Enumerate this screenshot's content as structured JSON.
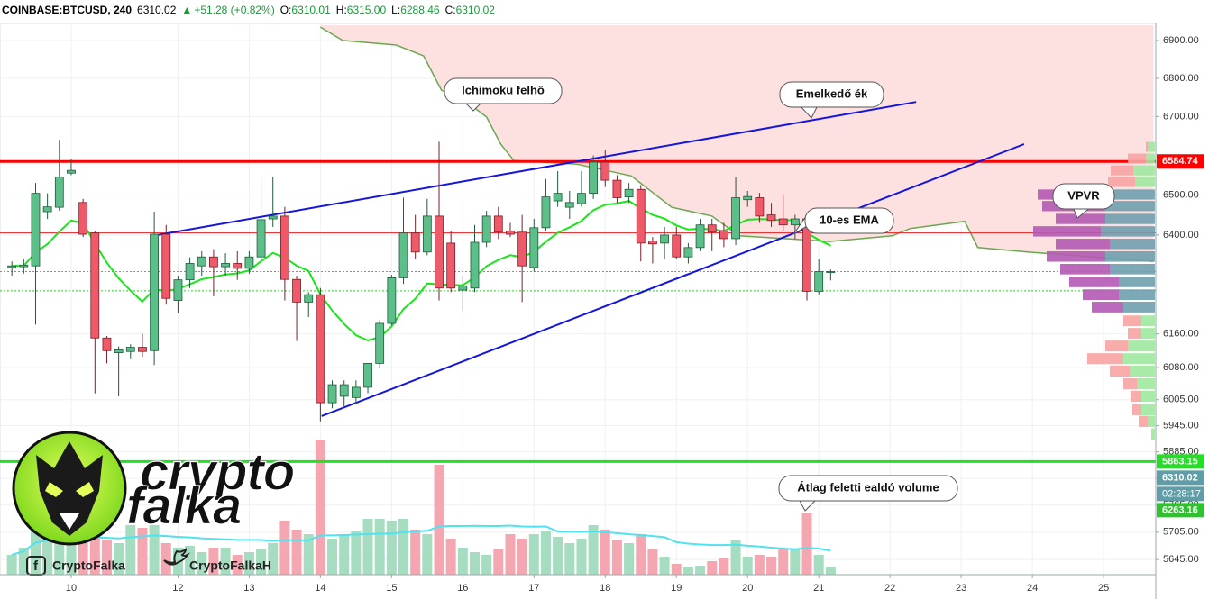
{
  "header": {
    "symbol": "COINBASE:BTCUSD, 240",
    "last": "6310.02",
    "change": "+51.28 (+0.82%)",
    "ohlc": [
      {
        "label": "O:",
        "value": "6310.01"
      },
      {
        "label": "H:",
        "value": "6315.00"
      },
      {
        "label": "L:",
        "value": "6288.46"
      },
      {
        "label": "C:",
        "value": "6310.02"
      }
    ]
  },
  "logo": {
    "line1": "crypto",
    "line2": "falka"
  },
  "footer": [
    "CryptoFalka",
    "CryptoFalkaH"
  ],
  "chart_data": {
    "type": "candlestick",
    "log_scale": true,
    "grid": true,
    "xlim": [
      -1,
      96.4
    ],
    "ylim": [
      5612,
      6941
    ],
    "xticks": [
      {
        "value": 5,
        "label": "10"
      },
      {
        "value": 14,
        "label": "12"
      },
      {
        "value": 20,
        "label": "13"
      },
      {
        "value": 26,
        "label": "14"
      },
      {
        "value": 32,
        "label": "15"
      },
      {
        "value": 38,
        "label": "16"
      },
      {
        "value": 44,
        "label": "17"
      },
      {
        "value": 50,
        "label": "18"
      },
      {
        "value": 56,
        "label": "19"
      },
      {
        "value": 62,
        "label": "20"
      },
      {
        "value": 68,
        "label": "21"
      },
      {
        "value": 74,
        "label": "22"
      },
      {
        "value": 80,
        "label": "23"
      },
      {
        "value": 86,
        "label": "24"
      },
      {
        "value": 92,
        "label": "25"
      }
    ],
    "yticks": [
      {
        "value": 6900,
        "label": "6900.00"
      },
      {
        "value": 6800,
        "label": "6800.00"
      },
      {
        "value": 6700,
        "label": "6700.00"
      },
      {
        "value": 6500,
        "label": "6500.00"
      },
      {
        "value": 6400,
        "label": "6400.00"
      },
      {
        "value": 6160,
        "label": "6160.00"
      },
      {
        "value": 6080,
        "label": "6080.00"
      },
      {
        "value": 6005,
        "label": "6005.00"
      },
      {
        "value": 5945,
        "label": "5945.00"
      },
      {
        "value": 5885,
        "label": "5885.00"
      },
      {
        "value": 5825,
        "label": "5825.00"
      },
      {
        "value": 5765,
        "label": "5765.00"
      },
      {
        "value": 5705,
        "label": "5705.00"
      },
      {
        "value": 5645,
        "label": "5645.00"
      }
    ],
    "x": [
      0,
      1,
      2,
      3,
      4,
      5,
      6,
      7,
      8,
      9,
      10,
      11,
      12,
      13,
      14,
      15,
      16,
      17,
      18,
      19,
      20,
      21,
      22,
      23,
      24,
      25,
      26,
      27,
      28,
      29,
      30,
      31,
      32,
      33,
      34,
      35,
      36,
      37,
      38,
      39,
      40,
      41,
      42,
      43,
      44,
      45,
      46,
      47,
      48,
      49,
      50,
      51,
      52,
      53,
      54,
      55,
      56,
      57,
      58,
      59,
      60,
      61,
      62,
      63,
      64,
      65,
      66,
      67,
      68,
      69
    ],
    "open": [
      6320,
      6322,
      6324,
      6458,
      6469,
      6555,
      6481,
      6405,
      6150,
      6115,
      6118,
      6128,
      6120,
      6402,
      6240,
      6290,
      6324,
      6346,
      6322,
      6330,
      6318,
      6346,
      6440,
      6447,
      6291,
      6236,
      6254,
      5998,
      6013,
      6010,
      6034,
      6090,
      6185,
      6295,
      6405,
      6358,
      6447,
      6380,
      6265,
      6270,
      6382,
      6447,
      6410,
      6407,
      6320,
      6418,
      6485,
      6469,
      6478,
      6504,
      6583,
      6537,
      6495,
      6514,
      6385,
      6380,
      6400,
      6346,
      6369,
      6425,
      6410,
      6391,
      6488,
      6493,
      6450,
      6440,
      6425,
      6440,
      6262,
      6310.01
    ],
    "high": [
      6335,
      6340,
      6530,
      6504,
      6640,
      6590,
      6490,
      6410,
      6155,
      6130,
      6135,
      6160,
      6458,
      6425,
      6300,
      6345,
      6360,
      6365,
      6355,
      6360,
      6360,
      6545,
      6545,
      6470,
      6300,
      6260,
      6270,
      6050,
      6050,
      6050,
      6090,
      6193,
      6302,
      6493,
      6450,
      6490,
      6635,
      6410,
      6300,
      6425,
      6460,
      6470,
      6430,
      6450,
      6440,
      6540,
      6560,
      6510,
      6560,
      6600,
      6615,
      6550,
      6530,
      6525,
      6395,
      6420,
      6420,
      6380,
      6440,
      6440,
      6430,
      6545,
      6510,
      6505,
      6480,
      6500,
      6450,
      6455,
      6340,
      6315
    ],
    "low": [
      6300,
      6305,
      6182,
      6440,
      6460,
      6550,
      6395,
      6020,
      6090,
      6013,
      6100,
      6105,
      6086,
      6230,
      6210,
      6270,
      6300,
      6250,
      6300,
      6290,
      6305,
      6336,
      6420,
      6240,
      6143,
      6200,
      5955,
      5985,
      5990,
      5995,
      6020,
      6080,
      6180,
      6280,
      6340,
      6350,
      6240,
      6260,
      6215,
      6260,
      6370,
      6390,
      6395,
      6236,
      6310,
      6410,
      6470,
      6440,
      6470,
      6490,
      6520,
      6480,
      6480,
      6335,
      6330,
      6340,
      6340,
      6330,
      6360,
      6360,
      6370,
      6375,
      6470,
      6430,
      6420,
      6410,
      6390,
      6240,
      6255,
      6288.46
    ],
    "close": [
      6324,
      6326,
      6504,
      6470,
      6545,
      6562,
      6402,
      6150,
      6120,
      6122,
      6128,
      6118,
      6402,
      6245,
      6290,
      6330,
      6346,
      6322,
      6330,
      6318,
      6346,
      6438,
      6447,
      6291,
      6236,
      6254,
      5998,
      6040,
      6040,
      6034,
      6090,
      6185,
      6295,
      6405,
      6358,
      6447,
      6270,
      6270,
      6275,
      6382,
      6447,
      6407,
      6402,
      6324,
      6418,
      6495,
      6504,
      6481,
      6504,
      6583,
      6537,
      6493,
      6514,
      6380,
      6378,
      6400,
      6346,
      6369,
      6425,
      6407,
      6391,
      6493,
      6496,
      6447,
      6436,
      6425,
      6440,
      6262,
      6310,
      6310.02
    ],
    "volume": [
      22,
      30,
      55,
      45,
      50,
      48,
      40,
      40,
      38,
      35,
      55,
      52,
      55,
      35,
      30,
      32,
      25,
      30,
      30,
      22,
      25,
      28,
      35,
      60,
      50,
      45,
      150,
      40,
      45,
      48,
      62,
      62,
      60,
      62,
      50,
      45,
      122,
      40,
      30,
      25,
      22,
      28,
      45,
      40,
      45,
      48,
      42,
      35,
      40,
      55,
      50,
      38,
      35,
      45,
      28,
      20,
      12,
      8,
      10,
      15,
      18,
      38,
      20,
      22,
      20,
      28,
      28,
      68,
      22,
      8
    ],
    "colors": {
      "up": "#5cbf8a",
      "down": "#ef5a6a",
      "up_edge": "#1f5a3a",
      "down_edge": "#7a1f28",
      "up_volume": "#a6dcc0",
      "down_volume": "#f5a7b1",
      "ema": "#19e619",
      "volume_ma": "#4fe3f0"
    },
    "ema_period": 10,
    "volume_ma_period": 20,
    "cloud": {
      "x": [
        26.0,
        27.9,
        32.4,
        34.7,
        36.2,
        38.5,
        40.0,
        41.2,
        42.3,
        47.6,
        52.2,
        55.6,
        59.0,
        61.3,
        65.1,
        68.9,
        74.2,
        75.7,
        80.3,
        81.4,
        85.6,
        96.2
      ],
      "y": [
        6936,
        6900,
        6888,
        6859,
        6769,
        6734,
        6699,
        6629,
        6587,
        6578,
        6548,
        6469,
        6447,
        6398,
        6391,
        6384,
        6398,
        6416,
        6434,
        6369,
        6358,
        6335
      ],
      "fill": "#fde0e0",
      "line": "#6aa84f"
    },
    "trendlines": [
      {
        "x": [
          11.9,
          76.2
        ],
        "y": [
          6398,
          6738
        ],
        "color": "#1414e0"
      },
      {
        "x": [
          26.1,
          85.3
        ],
        "y": [
          5967,
          6629
        ],
        "color": "#1414e0"
      }
    ],
    "levels": [
      {
        "value": 6584.74,
        "color": "#ff0000",
        "width": 3,
        "labeled": true
      },
      {
        "value": 5863.15,
        "color": "#22e022",
        "width": 3,
        "labeled": true
      },
      {
        "value": 6405,
        "color": "#e02020",
        "width": 1,
        "labeled": false
      },
      {
        "value": 6310.02,
        "color": "#5f9ea8",
        "width": 1,
        "dotted": true,
        "labeled": true
      },
      {
        "value": 6263.16,
        "color": "#2fc22f",
        "width": 1,
        "dotted": true,
        "labeled": true
      }
    ],
    "countdown": "02:28:17",
    "vpvr": {
      "value_area": [
        6210,
        6515
      ],
      "row_height": 30,
      "colors": {
        "up": "#9fe89f",
        "down": "#f7a3a3",
        "va_up": "#6f9fae",
        "va_down": "#b45ab4"
      },
      "rows": [
        {
          "price": 6622,
          "down": 2,
          "up": 8
        },
        {
          "price": 6592,
          "down": 20,
          "up": 10
        },
        {
          "price": 6562,
          "down": 25,
          "up": 24
        },
        {
          "price": 6533,
          "down": 30,
          "up": 22
        },
        {
          "price": 6501,
          "down": 75,
          "up": 55
        },
        {
          "price": 6472,
          "down": 70,
          "up": 55
        },
        {
          "price": 6440,
          "down": 55,
          "up": 55
        },
        {
          "price": 6409,
          "down": 75,
          "up": 60
        },
        {
          "price": 6378,
          "down": 60,
          "up": 50
        },
        {
          "price": 6347,
          "down": 65,
          "up": 55
        },
        {
          "price": 6316,
          "down": 55,
          "up": 50
        },
        {
          "price": 6285,
          "down": 55,
          "up": 40
        },
        {
          "price": 6254,
          "down": 40,
          "up": 40
        },
        {
          "price": 6224,
          "down": 35,
          "up": 35
        },
        {
          "price": 6191,
          "down": 20,
          "up": 15
        },
        {
          "price": 6161,
          "down": 15,
          "up": 15
        },
        {
          "price": 6131,
          "down": 25,
          "up": 30
        },
        {
          "price": 6101,
          "down": 40,
          "up": 35
        },
        {
          "price": 6072,
          "down": 22,
          "up": 28
        },
        {
          "price": 6042,
          "down": 15,
          "up": 20
        },
        {
          "price": 6013,
          "down": 12,
          "up": 15
        },
        {
          "price": 5982,
          "down": 10,
          "up": 15
        },
        {
          "price": 5955,
          "down": 10,
          "up": 8
        },
        {
          "price": 5926,
          "down": 0,
          "up": 4
        }
      ]
    },
    "annotations": [
      "Ichimoku felhő",
      "Emelkedő ék",
      "10-es EMA",
      "VPVR",
      "Átlag feletti ealdó volume"
    ]
  }
}
